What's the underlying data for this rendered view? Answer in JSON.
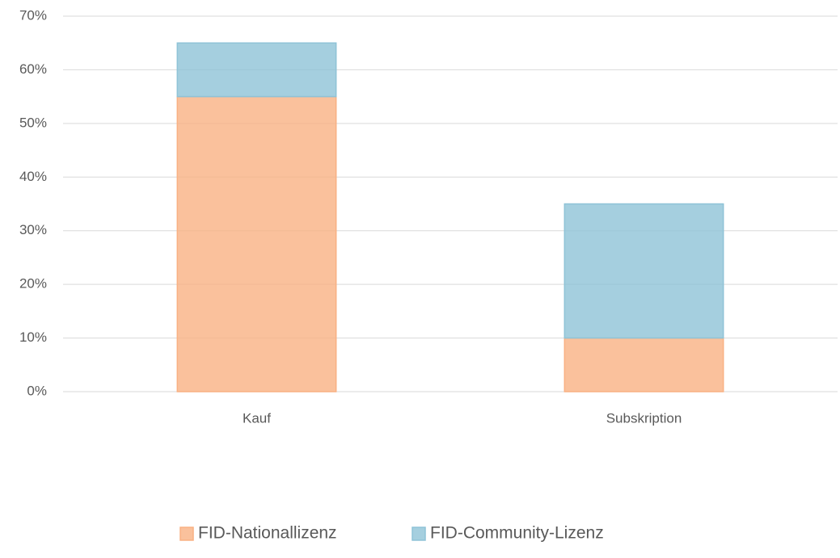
{
  "chart_data": {
    "type": "stacked_bar",
    "categories": [
      "Kauf",
      "Subskription"
    ],
    "series": [
      {
        "name": "FID-Nationallizenz",
        "color": "#f9b183",
        "values": [
          55,
          10
        ]
      },
      {
        "name": "FID-Community-Lizenz",
        "color": "#8fc3d7",
        "values": [
          10,
          25
        ]
      }
    ],
    "ylim": [
      0,
      70
    ],
    "yticks": [
      {
        "value": 0,
        "label": "0%"
      },
      {
        "value": 10,
        "label": "10%"
      },
      {
        "value": 20,
        "label": "20%"
      },
      {
        "value": 30,
        "label": "30%"
      },
      {
        "value": 40,
        "label": "40%"
      },
      {
        "value": 50,
        "label": "50%"
      },
      {
        "value": 60,
        "label": "60%"
      },
      {
        "value": 70,
        "label": "70%"
      }
    ],
    "grid": true,
    "legend": "bottom"
  }
}
